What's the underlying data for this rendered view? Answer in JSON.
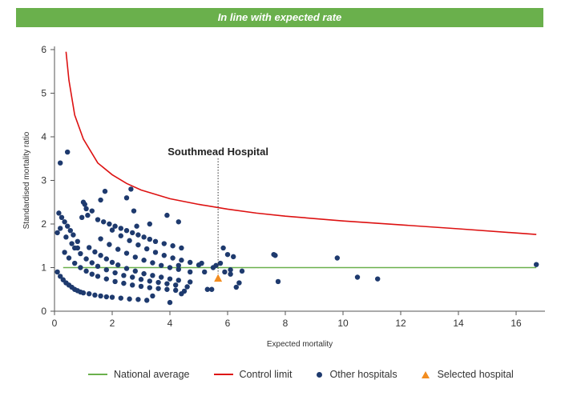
{
  "banner": {
    "text": "In line with expected rate",
    "color": "#6ab04c"
  },
  "chart_data": {
    "type": "scatter",
    "xlabel": "Expected mortality",
    "ylabel": "Standardised mortality ratio",
    "xlim": [
      0,
      17
    ],
    "ylim": [
      0,
      6
    ],
    "x_ticks": [
      0,
      2,
      4,
      6,
      8,
      10,
      12,
      14,
      16
    ],
    "y_ticks": [
      0,
      1,
      2,
      3,
      4,
      5,
      6
    ],
    "grid": false,
    "legend_position": "bottom",
    "annotation": {
      "text": "Southmead Hospital",
      "x": 5.67,
      "y": 0.75
    },
    "legend": [
      {
        "name": "National average",
        "kind": "line",
        "color": "#6ab04c"
      },
      {
        "name": "Control limit",
        "kind": "line",
        "color": "#dd1111"
      },
      {
        "name": "Other hospitals",
        "kind": "dot",
        "color": "#1e3a6e"
      },
      {
        "name": "Selected hospital",
        "kind": "triangle",
        "color": "#f28c1f"
      }
    ],
    "series": [
      {
        "name": "National average",
        "type": "line",
        "color": "#6ab04c",
        "x": [
          0.3,
          16.7
        ],
        "y": [
          1,
          1
        ]
      },
      {
        "name": "Control limit",
        "type": "line",
        "color": "#dd1111",
        "x": [
          0.4,
          0.5,
          0.7,
          1.0,
          1.5,
          2.0,
          2.5,
          3.0,
          4.0,
          5.0,
          6.0,
          7.0,
          8.0,
          10.0,
          12.0,
          14.0,
          16.7
        ],
        "y": [
          5.95,
          5.3,
          4.5,
          3.95,
          3.4,
          3.13,
          2.93,
          2.78,
          2.58,
          2.45,
          2.34,
          2.25,
          2.18,
          2.07,
          1.98,
          1.89,
          1.76
        ]
      },
      {
        "name": "Other hospitals",
        "type": "scatter",
        "color": "#1e3a6e",
        "x": [
          0.1,
          0.2,
          0.3,
          0.4,
          0.5,
          0.6,
          0.7,
          0.8,
          0.9,
          1.0,
          1.2,
          1.4,
          1.6,
          1.8,
          2.0,
          2.3,
          2.6,
          2.9,
          3.2,
          0.35,
          0.5,
          0.7,
          0.9,
          1.1,
          1.3,
          1.5,
          1.8,
          2.1,
          2.4,
          2.7,
          3.0,
          3.3,
          3.6,
          3.9,
          4.2,
          4.5,
          0.7,
          0.9,
          1.1,
          1.3,
          1.5,
          1.8,
          2.1,
          2.4,
          2.7,
          3.0,
          3.3,
          3.6,
          3.9,
          4.2,
          4.6,
          1.2,
          1.4,
          1.6,
          1.8,
          2.0,
          2.2,
          2.5,
          2.8,
          3.1,
          3.4,
          3.7,
          4.0,
          4.3,
          4.7,
          1.6,
          1.9,
          2.2,
          2.5,
          2.8,
          3.1,
          3.4,
          3.7,
          4.0,
          4.3,
          4.7,
          2.0,
          2.3,
          2.6,
          2.9,
          3.2,
          3.5,
          3.8,
          4.1,
          4.4,
          4.7,
          5.0,
          0.15,
          0.25,
          0.35,
          0.45,
          0.55,
          0.65,
          0.8,
          1.0,
          1.1,
          1.3,
          1.5,
          1.7,
          1.9,
          2.1,
          2.3,
          2.5,
          2.7,
          2.9,
          3.1,
          3.3,
          3.5,
          3.8,
          4.1,
          4.4,
          0.2,
          0.4,
          0.6,
          0.8,
          0.95,
          1.05,
          1.15,
          0.1,
          0.2,
          0.45,
          1.6,
          1.75,
          2.5,
          2.65,
          2.75,
          2.85,
          3.3,
          3.9,
          4.0,
          4.3,
          4.4,
          3.4,
          5.1,
          5.3,
          5.45,
          5.6,
          5.75,
          5.85,
          5.9,
          6.0,
          6.1,
          6.2,
          6.3,
          6.4,
          5.2,
          5.5,
          6.1,
          6.5,
          4.3,
          7.6,
          7.65,
          7.75,
          9.8,
          10.5,
          11.2,
          16.7
        ],
        "y": [
          0.9,
          0.8,
          0.72,
          0.65,
          0.6,
          0.55,
          0.5,
          0.47,
          0.44,
          0.42,
          0.4,
          0.37,
          0.35,
          0.33,
          0.32,
          0.3,
          0.28,
          0.27,
          0.25,
          1.35,
          1.22,
          1.1,
          1.0,
          0.92,
          0.85,
          0.8,
          0.74,
          0.68,
          0.64,
          0.6,
          0.57,
          0.54,
          0.52,
          0.5,
          0.48,
          0.46,
          1.45,
          1.32,
          1.2,
          1.11,
          1.03,
          0.95,
          0.88,
          0.82,
          0.78,
          0.73,
          0.69,
          0.66,
          0.63,
          0.6,
          0.56,
          1.46,
          1.36,
          1.28,
          1.2,
          1.12,
          1.06,
          0.98,
          0.92,
          0.86,
          0.82,
          0.78,
          0.74,
          0.71,
          0.67,
          1.66,
          1.53,
          1.42,
          1.33,
          1.24,
          1.17,
          1.11,
          1.05,
          1.0,
          0.96,
          0.9,
          1.86,
          1.73,
          1.62,
          1.52,
          1.43,
          1.35,
          1.28,
          1.22,
          1.17,
          1.12,
          1.06,
          2.25,
          2.15,
          2.05,
          1.95,
          1.85,
          1.75,
          1.6,
          2.5,
          2.35,
          2.3,
          2.1,
          2.05,
          2.0,
          1.95,
          1.9,
          1.85,
          1.8,
          1.75,
          1.7,
          1.65,
          1.6,
          1.55,
          1.5,
          1.45,
          1.9,
          1.7,
          1.55,
          1.45,
          2.15,
          2.45,
          2.2,
          1.8,
          3.4,
          3.65,
          2.55,
          2.75,
          2.6,
          2.8,
          2.3,
          1.95,
          2.0,
          2.2,
          0.2,
          2.05,
          0.4,
          0.35,
          1.1,
          0.5,
          0.5,
          1.05,
          1.1,
          1.45,
          0.9,
          1.3,
          0.95,
          1.25,
          0.55,
          0.65,
          0.9,
          1.0,
          0.85,
          0.92,
          1.05,
          1.3,
          1.28,
          0.68,
          1.22,
          0.78,
          0.74,
          1.07
        ]
      },
      {
        "name": "Selected hospital",
        "type": "scatter",
        "marker": "triangle",
        "color": "#f28c1f",
        "x": [
          5.67
        ],
        "y": [
          0.75
        ]
      }
    ]
  }
}
